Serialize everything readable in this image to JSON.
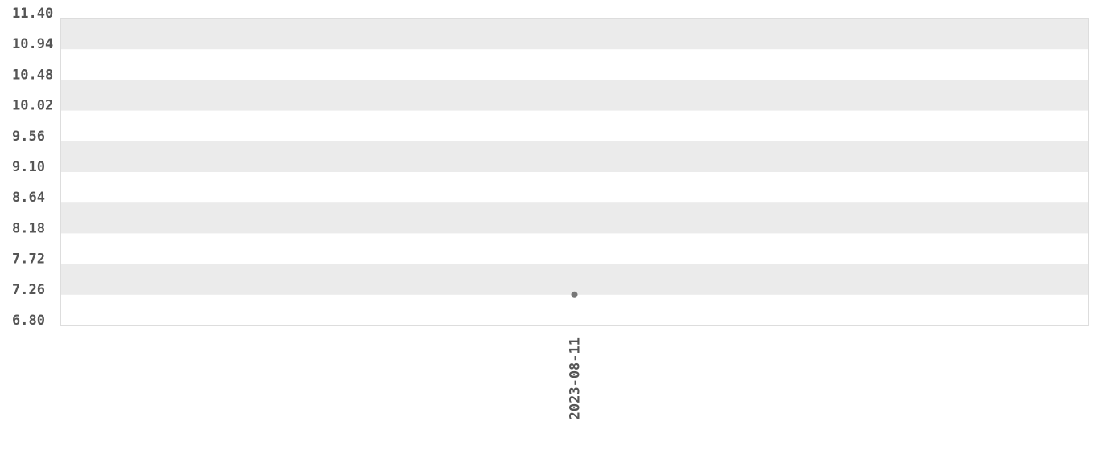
{
  "chart_data": {
    "type": "scatter",
    "title": "",
    "xlabel": "",
    "ylabel": "",
    "ylim": [
      6.8,
      11.4
    ],
    "y_ticks": [
      "6.80",
      "7.26",
      "7.72",
      "8.18",
      "8.64",
      "9.10",
      "9.56",
      "10.02",
      "10.48",
      "10.94",
      "11.40"
    ],
    "x_categories": [
      "2023-08-11"
    ],
    "points": [
      {
        "x": "2023-08-11",
        "y": 7.26
      }
    ],
    "grid": "alternating horizontal bands",
    "colors": {
      "band": "#ebebeb",
      "point": "#777777",
      "text": "#555555",
      "border": "#dddddd"
    }
  }
}
